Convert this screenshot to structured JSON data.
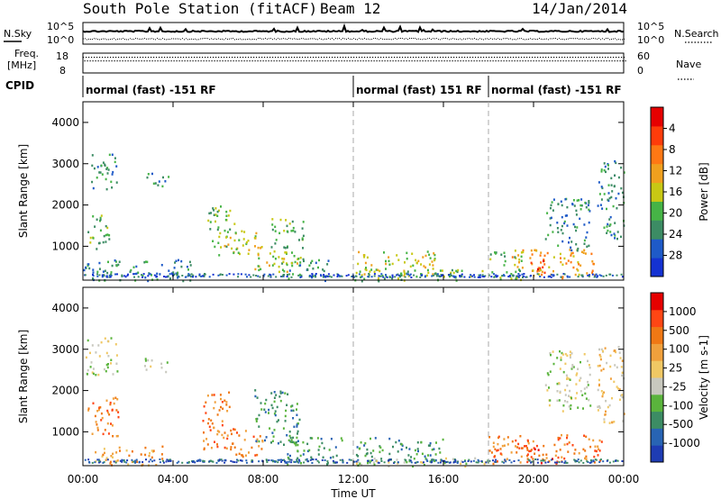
{
  "header": {
    "station": "South Pole Station (fitACF)",
    "beam": "Beam 12",
    "date": "14/Jan/2014"
  },
  "top_panels": {
    "nsky_label": "N.Sky",
    "nsearch_label": "N.Search",
    "noise_ticks": [
      "10^5",
      "10^0"
    ],
    "freq_label_1": "Freq.",
    "freq_label_2": "[MHz]",
    "freq_ticks": [
      "18",
      "8"
    ],
    "nave_label": "Nave",
    "nave_ticks": [
      "60",
      "0"
    ],
    "cpid_label": "CPID"
  },
  "cpid_segments": [
    {
      "start_hour": 0,
      "end_hour": 12,
      "label": "normal (fast) -151 RF"
    },
    {
      "start_hour": 12,
      "end_hour": 18,
      "label": "normal (fast) 151 RF"
    },
    {
      "start_hour": 18,
      "end_hour": 24,
      "label": "normal (fast) -151 RF"
    }
  ],
  "chart_data": [
    {
      "type": "heatmap",
      "panel": "power",
      "ylabel": "Slant Range [km]",
      "xlabel": "Time UT",
      "ylim": [
        180,
        4500
      ],
      "y_ticks": [
        1000,
        2000,
        3000,
        4000
      ],
      "x_tick_labels": [
        "00:00",
        "04:00",
        "08:00",
        "12:00",
        "16:00",
        "20:00",
        "00:00"
      ],
      "x_tick_hours": [
        0,
        4,
        8,
        12,
        16,
        20,
        24
      ],
      "colorbar": {
        "label": "Power [dB]",
        "ticks": [
          "4",
          "8",
          "12",
          "16",
          "20",
          "24",
          "28"
        ],
        "colors": [
          "#1432d2",
          "#1e5ac8",
          "#3c8c64",
          "#46b446",
          "#c8c814",
          "#f0a01e",
          "#ff7814",
          "#ff3c0a",
          "#e60000"
        ]
      },
      "clusters": [
        {
          "t0": 0.3,
          "t1": 1.5,
          "r0": 2400,
          "r1": 3300,
          "v": 2
        },
        {
          "t0": 0.2,
          "t1": 1.2,
          "r0": 900,
          "r1": 1800,
          "v": 3
        },
        {
          "t0": 0.0,
          "t1": 5.0,
          "r0": 180,
          "r1": 700,
          "v": 2
        },
        {
          "t0": 2.7,
          "t1": 3.8,
          "r0": 2450,
          "r1": 2800,
          "v": 2
        },
        {
          "t0": 5.5,
          "t1": 6.7,
          "r0": 1000,
          "r1": 2000,
          "v": 3
        },
        {
          "t0": 6.0,
          "t1": 8.0,
          "r0": 800,
          "r1": 1400,
          "v": 4
        },
        {
          "t0": 7.5,
          "t1": 9.5,
          "r0": 400,
          "r1": 900,
          "v": 4
        },
        {
          "t0": 8.3,
          "t1": 9.8,
          "r0": 600,
          "r1": 1700,
          "v": 3
        },
        {
          "t0": 9.0,
          "t1": 11.0,
          "r0": 180,
          "r1": 700,
          "v": 2
        },
        {
          "t0": 12.1,
          "t1": 16.0,
          "r0": 300,
          "r1": 900,
          "v": 4
        },
        {
          "t0": 12.0,
          "t1": 18.0,
          "r0": 180,
          "r1": 450,
          "v": 3
        },
        {
          "t0": 18.0,
          "t1": 19.5,
          "r0": 200,
          "r1": 900,
          "v": 3
        },
        {
          "t0": 19.0,
          "t1": 22.7,
          "r0": 250,
          "r1": 950,
          "v": 5
        },
        {
          "t0": 19.8,
          "t1": 20.5,
          "r0": 300,
          "r1": 750,
          "v": 7
        },
        {
          "t0": 20.5,
          "t1": 22.5,
          "r0": 900,
          "r1": 2200,
          "v": 2
        },
        {
          "t0": 22.8,
          "t1": 24.0,
          "r0": 1200,
          "r1": 3100,
          "v": 2
        }
      ]
    },
    {
      "type": "heatmap",
      "panel": "velocity",
      "ylabel": "Slant Range [km]",
      "xlabel": "Time UT",
      "ylim": [
        180,
        4500
      ],
      "y_ticks": [
        1000,
        2000,
        3000,
        4000
      ],
      "x_tick_labels": [
        "00:00",
        "04:00",
        "08:00",
        "12:00",
        "16:00",
        "20:00",
        "00:00"
      ],
      "x_tick_hours": [
        0,
        4,
        8,
        12,
        16,
        20,
        24
      ],
      "colorbar": {
        "label": "Velocity [m s-1]",
        "ticks": [
          "1000",
          "500",
          "100",
          "25",
          "-25",
          "-100",
          "-500",
          "-1000"
        ],
        "colors": [
          "#1e3cb4",
          "#2864b4",
          "#3c8c64",
          "#5ab43c",
          "#c8c8be",
          "#f0c864",
          "#f0a03c",
          "#f07814",
          "#ff4614",
          "#e60000"
        ]
      },
      "clusters": [
        {
          "t0": 0.1,
          "t1": 1.5,
          "r0": 2400,
          "r1": 3300,
          "v": 4
        },
        {
          "t0": 0.2,
          "t1": 1.6,
          "r0": 900,
          "r1": 1900,
          "v": 7
        },
        {
          "t0": 0.5,
          "t1": 3.5,
          "r0": 200,
          "r1": 700,
          "v": 6
        },
        {
          "t0": 2.7,
          "t1": 3.8,
          "r0": 2450,
          "r1": 2800,
          "v": 4
        },
        {
          "t0": 5.3,
          "t1": 6.5,
          "r0": 600,
          "r1": 2000,
          "v": 7
        },
        {
          "t0": 6.2,
          "t1": 8.0,
          "r0": 400,
          "r1": 1100,
          "v": 7
        },
        {
          "t0": 7.6,
          "t1": 9.6,
          "r0": 700,
          "r1": 2100,
          "v": 2
        },
        {
          "t0": 9.0,
          "t1": 11.5,
          "r0": 200,
          "r1": 900,
          "v": 2
        },
        {
          "t0": 12.1,
          "t1": 16.0,
          "r0": 300,
          "r1": 900,
          "v": 2
        },
        {
          "t0": 12.0,
          "t1": 18.0,
          "r0": 180,
          "r1": 400,
          "v": 4
        },
        {
          "t0": 18.0,
          "t1": 23.0,
          "r0": 250,
          "r1": 950,
          "v": 7
        },
        {
          "t0": 19.6,
          "t1": 21.0,
          "r0": 250,
          "r1": 700,
          "v": 8
        },
        {
          "t0": 20.5,
          "t1": 22.5,
          "r0": 1500,
          "r1": 3000,
          "v": 4
        },
        {
          "t0": 22.8,
          "t1": 24.0,
          "r0": 1200,
          "r1": 3100,
          "v": 5
        }
      ]
    }
  ]
}
